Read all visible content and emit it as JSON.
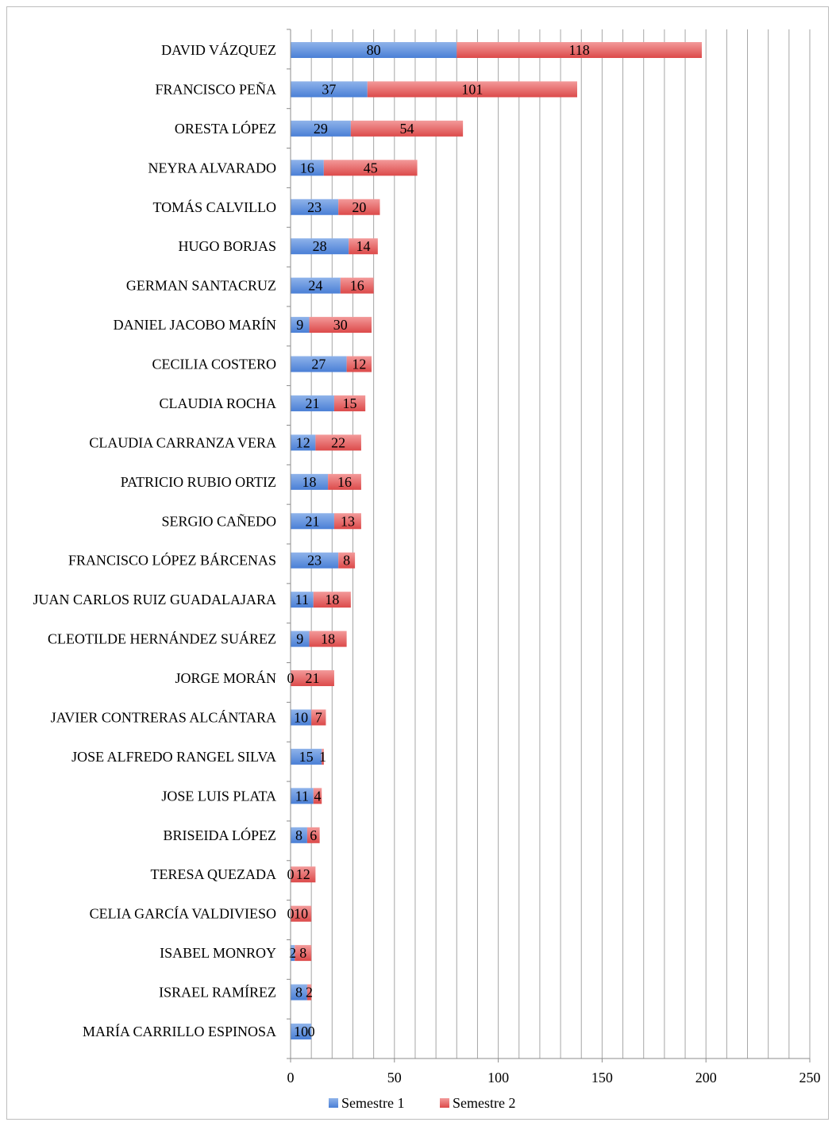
{
  "colors": {
    "series1_top": "#8fb3ea",
    "series1_bottom": "#4a7fd6",
    "series2_top": "#f39a9a",
    "series2_bottom": "#dc4a4a",
    "grid": "#a6a6a6",
    "axis": "#8c8c8c"
  },
  "chart_data": {
    "type": "bar",
    "orientation": "horizontal",
    "stacked": true,
    "categories": [
      "DAVID VÁZQUEZ",
      "FRANCISCO PEÑA",
      "ORESTA LÓPEZ",
      "NEYRA ALVARADO",
      "TOMÁS CALVILLO",
      "HUGO BORJAS",
      "GERMAN SANTACRUZ",
      "DANIEL JACOBO MARÍN",
      "CECILIA COSTERO",
      "CLAUDIA ROCHA",
      "CLAUDIA CARRANZA VERA",
      "PATRICIO RUBIO ORTIZ",
      "SERGIO CAÑEDO",
      "FRANCISCO LÓPEZ BÁRCENAS",
      "JUAN CARLOS RUIZ GUADALAJARA",
      "CLEOTILDE HERNÁNDEZ SUÁREZ",
      "JORGE MORÁN",
      "JAVIER CONTRERAS ALCÁNTARA",
      "JOSE ALFREDO RANGEL SILVA",
      "JOSE LUIS PLATA",
      "BRISEIDA LÓPEZ",
      "TERESA QUEZADA",
      "CELIA GARCÍA VALDIVIESO",
      "ISABEL MONROY",
      "ISRAEL RAMÍREZ",
      "MARÍA CARRILLO ESPINOSA"
    ],
    "series": [
      {
        "name": "Semestre 1",
        "values": [
          80,
          37,
          29,
          16,
          23,
          28,
          24,
          9,
          27,
          21,
          12,
          18,
          21,
          23,
          11,
          9,
          0,
          10,
          15,
          11,
          8,
          0,
          0,
          2,
          8,
          10
        ]
      },
      {
        "name": "Semestre 2",
        "values": [
          118,
          101,
          54,
          45,
          20,
          14,
          16,
          30,
          12,
          15,
          22,
          16,
          13,
          8,
          18,
          18,
          21,
          7,
          1,
          4,
          6,
          12,
          10,
          8,
          2,
          0
        ]
      }
    ],
    "xlim": [
      0,
      250
    ],
    "xticks": [
      "0",
      "50",
      "100",
      "150",
      "200",
      "250"
    ],
    "grid_step": 10,
    "grid": true,
    "legend_position": "bottom"
  }
}
